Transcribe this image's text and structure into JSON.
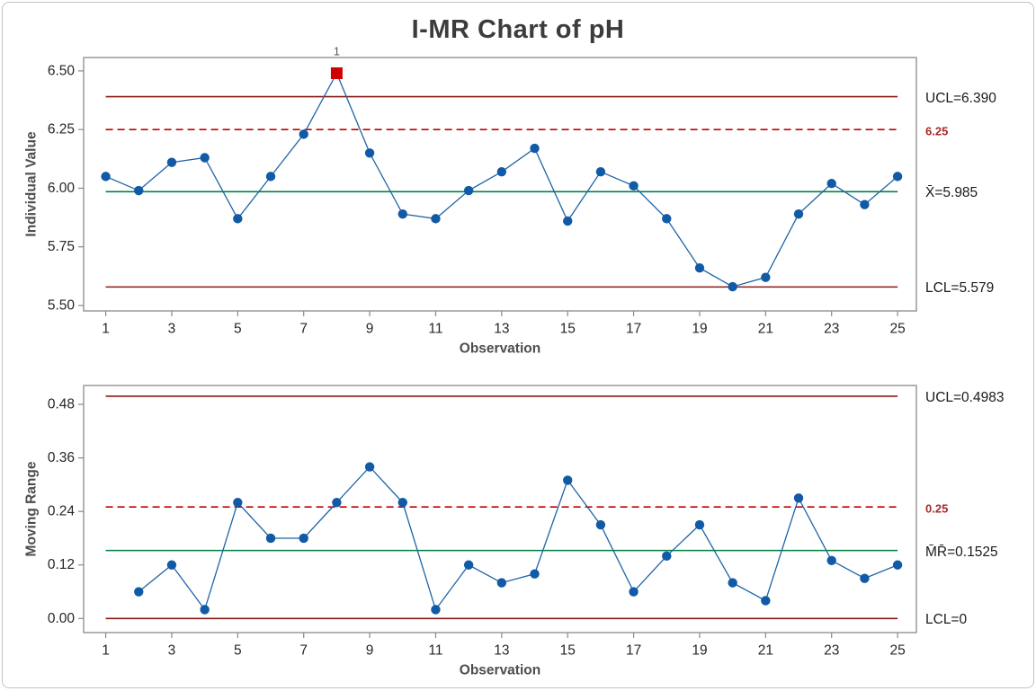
{
  "title": "I-MR Chart of pH",
  "colors": {
    "point_blue": "#115aa5",
    "line_blue": "#1e64a6",
    "center_green": "#008143",
    "control_dark_red": "#8b1a17",
    "spec_red": "#c00000",
    "out_of_control_red": "#ce0000",
    "frame_gray": "#8a8a8a",
    "tick_text": "#262626",
    "axis_title_gray": "#4d4d4d",
    "flag_gray": "#595959"
  },
  "chart_data": [
    {
      "type": "line",
      "name": "individuals",
      "ylabel": "Individual Value",
      "xlabel": "Observation",
      "x": [
        1,
        2,
        3,
        4,
        5,
        6,
        7,
        8,
        9,
        10,
        11,
        12,
        13,
        14,
        15,
        16,
        17,
        18,
        19,
        20,
        21,
        22,
        23,
        24,
        25
      ],
      "values": [
        6.05,
        5.99,
        6.11,
        6.13,
        5.87,
        6.05,
        6.23,
        6.49,
        6.15,
        5.89,
        5.87,
        5.99,
        6.07,
        6.17,
        5.86,
        6.07,
        6.01,
        5.87,
        5.66,
        5.58,
        5.62,
        5.89,
        6.02,
        5.93,
        6.05
      ],
      "out_of_control_points": [
        8
      ],
      "out_of_control_flag": "1",
      "ucl": 6.39,
      "center": 5.985,
      "lcl": 5.579,
      "spec_line": 6.25,
      "ucl_label": "UCL=6.390",
      "center_label": "X̄=5.985",
      "lcl_label": "LCL=5.579",
      "spec_label": "6.25",
      "line_span": [
        1,
        25
      ],
      "ytick_values": [
        5.5,
        5.75,
        6.0,
        6.25,
        6.5
      ],
      "ytick_labels": [
        "5.50",
        "5.75",
        "6.00",
        "6.25",
        "6.50"
      ],
      "xticks": [
        1,
        3,
        5,
        7,
        9,
        11,
        13,
        15,
        17,
        19,
        21,
        23,
        25
      ],
      "ylim": [
        5.477,
        6.557
      ],
      "xlim": [
        0.33,
        25.57
      ],
      "grid": false,
      "legend": null
    },
    {
      "type": "line",
      "name": "moving_range",
      "ylabel": "Moving Range",
      "xlabel": "Observation",
      "x": [
        2,
        3,
        4,
        5,
        6,
        7,
        8,
        9,
        10,
        11,
        12,
        13,
        14,
        15,
        16,
        17,
        18,
        19,
        20,
        21,
        22,
        23,
        24,
        25
      ],
      "values": [
        0.06,
        0.12,
        0.02,
        0.26,
        0.18,
        0.18,
        0.26,
        0.34,
        0.26,
        0.02,
        0.12,
        0.08,
        0.1,
        0.31,
        0.21,
        0.06,
        0.14,
        0.21,
        0.08,
        0.04,
        0.27,
        0.13,
        0.09,
        0.12
      ],
      "out_of_control_points": [],
      "out_of_control_flag": "",
      "ucl": 0.4983,
      "center": 0.1525,
      "lcl": 0,
      "spec_line": 0.25,
      "ucl_label": "UCL=0.4983",
      "center_label": "M̄R̄=0.1525",
      "lcl_label": "LCL=0",
      "spec_label": "0.25",
      "line_span": [
        1,
        25
      ],
      "ytick_values": [
        0.0,
        0.12,
        0.24,
        0.36,
        0.48
      ],
      "ytick_labels": [
        "0.00",
        "0.12",
        "0.24",
        "0.36",
        "0.48"
      ],
      "xticks": [
        1,
        3,
        5,
        7,
        9,
        11,
        13,
        15,
        17,
        19,
        21,
        23,
        25
      ],
      "ylim": [
        -0.0316,
        0.5224
      ],
      "xlim": [
        0.33,
        25.57
      ],
      "grid": false,
      "legend": null
    }
  ]
}
